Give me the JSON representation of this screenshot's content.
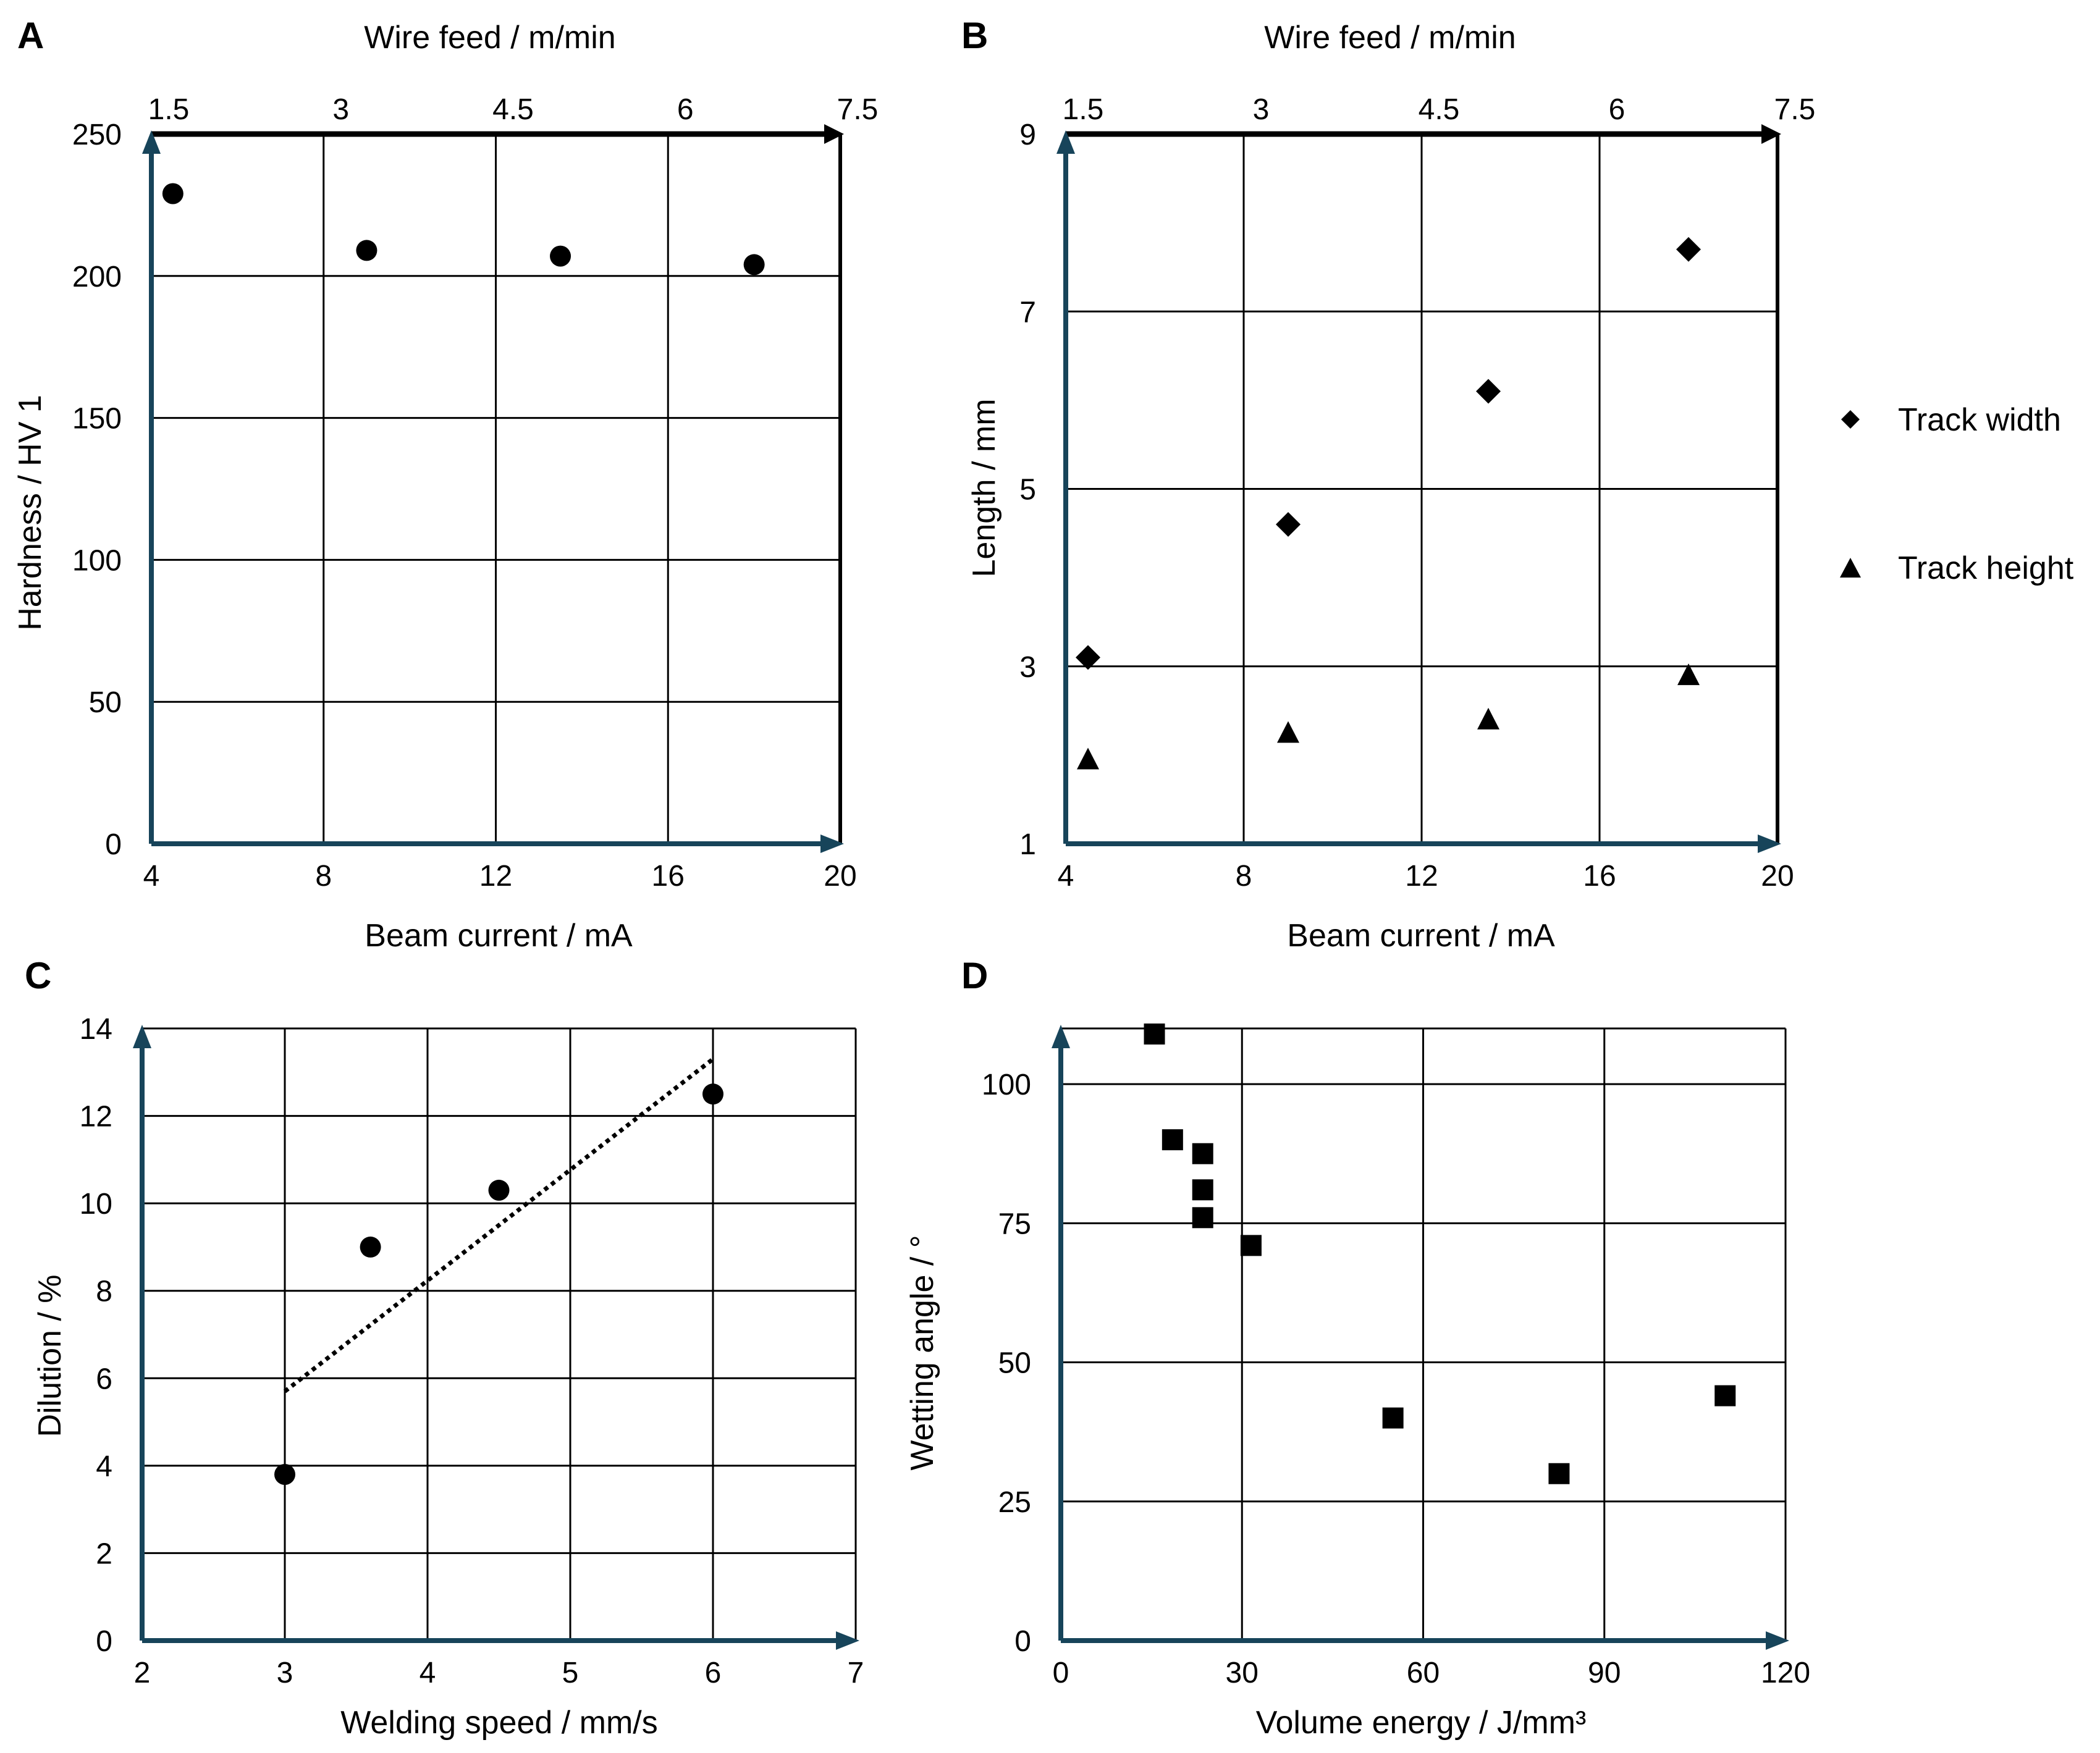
{
  "colors": {
    "axis": "#17445a",
    "marker": "#000000",
    "grid": "#000000",
    "background": "#ffffff"
  },
  "chart_data": [
    {
      "panel": "A",
      "type": "scatter",
      "title": "",
      "xlabel": "Beam current / mA",
      "ylabel": "Hardness / HV 1",
      "top_xlabel": "Wire feed / m/min",
      "xlim": [
        4,
        20
      ],
      "ylim": [
        0,
        250
      ],
      "top_xlim": [
        1.5,
        7.5
      ],
      "xticks": [
        "4",
        "8",
        "12",
        "16",
        "20"
      ],
      "yticks": [
        "0",
        "50",
        "100",
        "150",
        "200",
        "250"
      ],
      "top_xticks": [
        "1.5",
        "3",
        "4.5",
        "6",
        "7.5"
      ],
      "grid": true,
      "series": [
        {
          "name": "Hardness",
          "marker": "circle",
          "x": [
            4.5,
            9,
            13.5,
            18
          ],
          "y": [
            229,
            209,
            207,
            204
          ]
        }
      ]
    },
    {
      "panel": "B",
      "type": "scatter",
      "title": "",
      "xlabel": "Beam current / mA",
      "ylabel": "Length / mm",
      "top_xlabel": "Wire feed / m/min",
      "xlim": [
        4,
        20
      ],
      "ylim": [
        1,
        9
      ],
      "top_xlim": [
        1.5,
        7.5
      ],
      "xticks": [
        "4",
        "8",
        "12",
        "16",
        "20"
      ],
      "yticks": [
        "1",
        "3",
        "5",
        "7",
        "9"
      ],
      "top_xticks": [
        "1.5",
        "3",
        "4.5",
        "6",
        "7.5"
      ],
      "grid": true,
      "legend": "right",
      "series": [
        {
          "name": "Track width",
          "marker": "diamond",
          "x": [
            4.5,
            9,
            13.5,
            18
          ],
          "y": [
            3.1,
            4.6,
            6.1,
            7.7
          ]
        },
        {
          "name": "Track height",
          "marker": "triangle",
          "x": [
            4.5,
            9,
            13.5,
            18
          ],
          "y": [
            1.95,
            2.25,
            2.4,
            2.9
          ]
        }
      ]
    },
    {
      "panel": "C",
      "type": "scatter",
      "title": "",
      "xlabel": "Welding speed / mm/s",
      "ylabel": "Dilution / %",
      "xlim": [
        2,
        7
      ],
      "ylim": [
        0,
        14
      ],
      "xticks": [
        "2",
        "3",
        "4",
        "5",
        "6",
        "7"
      ],
      "yticks": [
        "0",
        "2",
        "4",
        "6",
        "8",
        "10",
        "12",
        "14"
      ],
      "grid": true,
      "series": [
        {
          "name": "Dilution",
          "marker": "circle",
          "x": [
            3,
            3.6,
            4.5,
            6
          ],
          "y": [
            3.8,
            9.0,
            10.3,
            12.5
          ]
        }
      ],
      "trendline": {
        "style": "dotted",
        "x": [
          3,
          6
        ],
        "y": [
          5.7,
          13.3
        ]
      }
    },
    {
      "panel": "D",
      "type": "scatter",
      "title": "",
      "xlabel": "Volume energy / J/mm³",
      "ylabel": "Wetting angle / °",
      "xlim": [
        0,
        120
      ],
      "ylim": [
        0,
        110
      ],
      "xticks": [
        "0",
        "30",
        "60",
        "90",
        "120"
      ],
      "yticks": [
        "0",
        "25",
        "50",
        "75",
        "100"
      ],
      "grid": true,
      "series": [
        {
          "name": "Wetting angle",
          "marker": "square",
          "x": [
            15.5,
            18.5,
            23.5,
            23.5,
            23.5,
            31.5,
            55,
            82.5,
            110
          ],
          "y": [
            109,
            90,
            87.5,
            81,
            76,
            71,
            40,
            30,
            44
          ]
        }
      ]
    }
  ]
}
